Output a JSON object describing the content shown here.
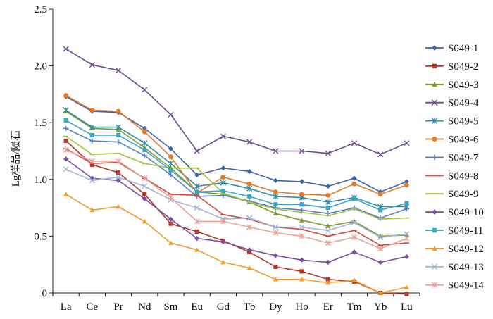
{
  "chart_data": {
    "type": "line",
    "title": "",
    "xlabel": "",
    "ylabel": "Lg样品/陨石",
    "ylim": [
      0,
      2.5
    ],
    "yticks": [
      "0",
      "0.5",
      "1.0",
      "1.5",
      "2.0",
      "2.5"
    ],
    "categories": [
      "La",
      "Ce",
      "Pr",
      "Nd",
      "Sm",
      "Eu",
      "Gd",
      "Tb",
      "Dy",
      "Ho",
      "Er",
      "Tm",
      "Yb",
      "Lu"
    ],
    "grid": false,
    "legend_position": "right",
    "series": [
      {
        "name": "S049-1",
        "color": "#3f63a8",
        "marker": "diamond",
        "values": [
          1.73,
          1.6,
          1.59,
          1.45,
          1.27,
          1.04,
          1.1,
          1.07,
          0.99,
          0.98,
          0.94,
          1.01,
          0.89,
          0.98
        ]
      },
      {
        "name": "S049-2",
        "color": "#b03a2e",
        "marker": "square",
        "values": [
          1.34,
          1.13,
          1.06,
          0.87,
          0.61,
          0.54,
          0.46,
          0.36,
          0.23,
          0.19,
          0.12,
          0.1,
          0.0,
          -0.01
        ]
      },
      {
        "name": "S049-3",
        "color": "#7f9a2e",
        "marker": "triangle",
        "values": [
          1.6,
          1.45,
          1.44,
          1.28,
          1.1,
          0.89,
          0.87,
          0.8,
          0.7,
          0.64,
          0.59,
          0.63,
          0.5,
          0.51
        ]
      },
      {
        "name": "S049-4",
        "color": "#6a4b8c",
        "marker": "x",
        "values": [
          2.15,
          2.01,
          1.96,
          1.79,
          1.57,
          1.25,
          1.38,
          1.33,
          1.25,
          1.25,
          1.23,
          1.32,
          1.22,
          1.32
        ]
      },
      {
        "name": "S049-5",
        "color": "#2f8fa3",
        "marker": "star",
        "values": [
          1.61,
          1.46,
          1.46,
          1.32,
          1.14,
          0.94,
          0.97,
          0.92,
          0.85,
          0.84,
          0.8,
          0.84,
          0.76,
          0.76
        ]
      },
      {
        "name": "S049-6",
        "color": "#e07b2a",
        "marker": "circle",
        "values": [
          1.74,
          1.61,
          1.6,
          1.42,
          1.2,
          0.88,
          1.02,
          0.96,
          0.89,
          0.87,
          0.86,
          0.96,
          0.87,
          0.95
        ]
      },
      {
        "name": "S049-7",
        "color": "#5a7fc4",
        "marker": "plus",
        "values": [
          1.45,
          1.34,
          1.33,
          1.21,
          1.04,
          0.85,
          0.86,
          0.81,
          0.75,
          0.73,
          0.7,
          0.75,
          0.66,
          0.74
        ]
      },
      {
        "name": "S049-8",
        "color": "#d04a3c",
        "marker": "dash",
        "values": [
          1.27,
          1.14,
          1.15,
          1.01,
          0.87,
          0.86,
          0.69,
          0.65,
          0.58,
          0.56,
          0.5,
          0.55,
          0.42,
          0.44
        ]
      },
      {
        "name": "S049-9",
        "color": "#9cc43f",
        "marker": "dash",
        "values": [
          1.38,
          1.22,
          1.23,
          1.14,
          1.1,
          1.1,
          0.88,
          0.8,
          0.74,
          0.71,
          0.68,
          0.74,
          0.65,
          0.66
        ]
      },
      {
        "name": "S049-10",
        "color": "#7b4fa0",
        "marker": "diamond",
        "values": [
          1.18,
          1.01,
          0.99,
          0.83,
          0.65,
          0.48,
          0.45,
          0.38,
          0.33,
          0.29,
          0.27,
          0.36,
          0.27,
          0.32
        ]
      },
      {
        "name": "S049-11",
        "color": "#3aa6c4",
        "marker": "square",
        "values": [
          1.52,
          1.39,
          1.39,
          1.26,
          1.08,
          0.89,
          0.9,
          0.85,
          0.78,
          0.78,
          0.75,
          0.83,
          0.73,
          0.79
        ]
      },
      {
        "name": "S049-12",
        "color": "#f39a2e",
        "marker": "triangle",
        "values": [
          0.87,
          0.73,
          0.76,
          0.63,
          0.44,
          0.38,
          0.27,
          0.22,
          0.12,
          0.12,
          0.09,
          0.11,
          0.0,
          0.05
        ]
      },
      {
        "name": "S049-13",
        "color": "#a7b4d8",
        "marker": "x",
        "values": [
          1.09,
          0.99,
          1.02,
          0.94,
          0.82,
          0.75,
          0.65,
          0.66,
          0.58,
          0.58,
          0.55,
          0.62,
          0.49,
          0.52
        ]
      },
      {
        "name": "S049-14",
        "color": "#e8a29a",
        "marker": "star",
        "values": [
          1.26,
          1.16,
          1.16,
          1.01,
          0.84,
          0.63,
          0.63,
          0.58,
          0.53,
          0.5,
          0.44,
          0.49,
          0.39,
          0.48
        ]
      }
    ]
  }
}
